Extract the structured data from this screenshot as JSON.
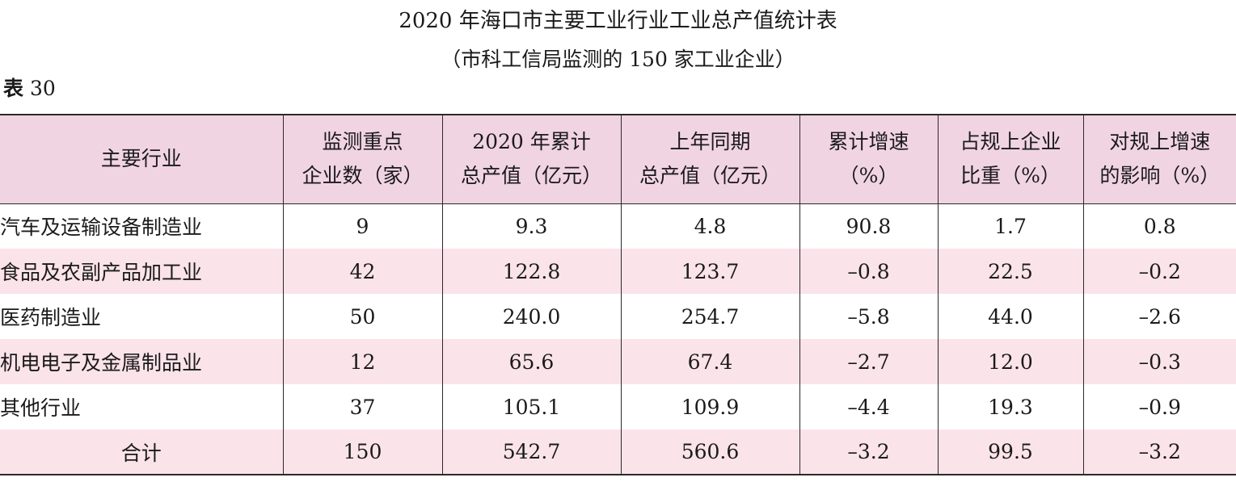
{
  "title": "2020 年海口市主要工业行业工业总产值统计表",
  "subtitle": "（市科工信局监测的 150 家工业企业）",
  "table_number": {
    "prefix": "表",
    "number": "30"
  },
  "headers": [
    [
      "主要行业"
    ],
    [
      "监测重点",
      "企业数（家）"
    ],
    [
      "2020 年累计",
      "总产值（亿元）"
    ],
    [
      "上年同期",
      "总产值（亿元）"
    ],
    [
      "累计增速",
      "（%）"
    ],
    [
      "占规上企业",
      "比重（%）"
    ],
    [
      "对规上增速",
      "的影响（%）"
    ]
  ],
  "rows": [
    [
      "汽车及运输设备制造业",
      "9",
      "9.3",
      "4.8",
      "90.8",
      "1.7",
      "0.8"
    ],
    [
      "食品及农副产品加工业",
      "42",
      "122.8",
      "123.7",
      "–0.8",
      "22.5",
      "–0.2"
    ],
    [
      "医药制造业",
      "50",
      "240.0",
      "254.7",
      "–5.8",
      "44.0",
      "–2.6"
    ],
    [
      "机电电子及金属制品业",
      "12",
      "65.6",
      "67.4",
      "–2.7",
      "12.0",
      "–0.3"
    ],
    [
      "其他行业",
      "37",
      "105.1",
      "109.9",
      "–4.4",
      "19.3",
      "–0.9"
    ],
    [
      "合计",
      "150",
      "542.7",
      "560.6",
      "–3.2",
      "99.5",
      "–3.2"
    ]
  ]
}
